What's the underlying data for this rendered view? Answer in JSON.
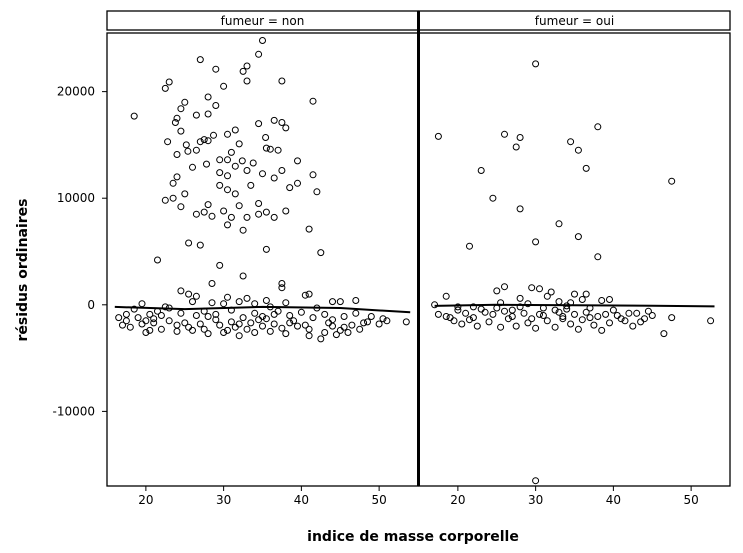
{
  "chart_data": {
    "type": "scatter",
    "xlabel": "indice de masse corporelle",
    "ylabel": "résidus ordinaires",
    "xlim": [
      15,
      55
    ],
    "ylim": [
      -17000,
      25500
    ],
    "x_ticks": [
      20,
      30,
      40,
      50
    ],
    "y_ticks": [
      -10000,
      0,
      10000,
      20000
    ],
    "y_tick_labels": [
      "-10000",
      "0",
      "10000",
      "20000"
    ],
    "grid": false,
    "panels": [
      {
        "strip": "fumeur = non",
        "smooth": [
          [
            16,
            -200
          ],
          [
            25,
            -400
          ],
          [
            35,
            -200
          ],
          [
            45,
            -300
          ],
          [
            54,
            -700
          ]
        ],
        "points": [
          [
            35,
            24800
          ],
          [
            27,
            23000
          ],
          [
            34.5,
            23500
          ],
          [
            33,
            22400
          ],
          [
            29,
            22100
          ],
          [
            32.5,
            21900
          ],
          [
            23,
            20900
          ],
          [
            22.5,
            20300
          ],
          [
            37.5,
            21000
          ],
          [
            33,
            21000
          ],
          [
            30,
            20500
          ],
          [
            25,
            19000
          ],
          [
            28,
            19500
          ],
          [
            24.5,
            18400
          ],
          [
            29,
            18700
          ],
          [
            41.5,
            19100
          ],
          [
            18.5,
            17700
          ],
          [
            24,
            17500
          ],
          [
            26.5,
            17800
          ],
          [
            28,
            17900
          ],
          [
            36.5,
            17300
          ],
          [
            37.5,
            17100
          ],
          [
            38,
            16600
          ],
          [
            23.8,
            17100
          ],
          [
            24.5,
            16300
          ],
          [
            31.5,
            16400
          ],
          [
            34.5,
            17000
          ],
          [
            30.5,
            16000
          ],
          [
            28.7,
            15900
          ],
          [
            27.5,
            15500
          ],
          [
            27,
            15300
          ],
          [
            28,
            15400
          ],
          [
            32,
            15100
          ],
          [
            22.8,
            15300
          ],
          [
            25.2,
            15000
          ],
          [
            35.4,
            15700
          ],
          [
            35.5,
            14700
          ],
          [
            36,
            14600
          ],
          [
            37,
            14500
          ],
          [
            25.4,
            14400
          ],
          [
            26.5,
            14500
          ],
          [
            31,
            14300
          ],
          [
            24,
            14100
          ],
          [
            29.5,
            13600
          ],
          [
            30.5,
            13600
          ],
          [
            32.4,
            13500
          ],
          [
            33.8,
            13300
          ],
          [
            39.5,
            13500
          ],
          [
            27.8,
            13200
          ],
          [
            31.5,
            13000
          ],
          [
            26,
            12900
          ],
          [
            33,
            12600
          ],
          [
            35,
            12300
          ],
          [
            29.5,
            12400
          ],
          [
            37.5,
            12600
          ],
          [
            41.5,
            12200
          ],
          [
            24,
            12000
          ],
          [
            30.5,
            12100
          ],
          [
            39.5,
            11400
          ],
          [
            38.5,
            11000
          ],
          [
            23.5,
            11400
          ],
          [
            29.5,
            11200
          ],
          [
            33.5,
            11200
          ],
          [
            36.5,
            11900
          ],
          [
            30.5,
            10800
          ],
          [
            25,
            10400
          ],
          [
            31.5,
            10400
          ],
          [
            42,
            10600
          ],
          [
            22.5,
            9800
          ],
          [
            23.5,
            10000
          ],
          [
            28,
            9400
          ],
          [
            32,
            9300
          ],
          [
            34.5,
            9500
          ],
          [
            24.5,
            9200
          ],
          [
            26.5,
            8500
          ],
          [
            27.5,
            8700
          ],
          [
            30,
            8800
          ],
          [
            33,
            8200
          ],
          [
            34.5,
            8500
          ],
          [
            35.5,
            8700
          ],
          [
            36.5,
            8200
          ],
          [
            38,
            8800
          ],
          [
            41,
            7100
          ],
          [
            30.5,
            7500
          ],
          [
            31,
            8200
          ],
          [
            28.5,
            8300
          ],
          [
            32.5,
            7000
          ],
          [
            25.5,
            5800
          ],
          [
            27,
            5600
          ],
          [
            35.5,
            5200
          ],
          [
            42.5,
            4900
          ],
          [
            21.5,
            4200
          ],
          [
            29.5,
            3700
          ],
          [
            32.5,
            2700
          ],
          [
            28.5,
            2000
          ],
          [
            37.5,
            2000
          ],
          [
            37.5,
            1600
          ],
          [
            24.5,
            1300
          ],
          [
            25.5,
            1000
          ],
          [
            26.5,
            800
          ],
          [
            40.5,
            900
          ],
          [
            41,
            1000
          ],
          [
            30.5,
            700
          ],
          [
            33,
            600
          ],
          [
            35.5,
            400
          ],
          [
            44,
            300
          ],
          [
            45,
            300
          ],
          [
            47,
            400
          ],
          [
            49,
            -1100
          ],
          [
            50.5,
            -1300
          ],
          [
            51,
            -1500
          ],
          [
            53.5,
            -1600
          ],
          [
            16.5,
            -1200
          ],
          [
            17,
            -1900
          ],
          [
            17.5,
            -1500
          ],
          [
            18,
            -2100
          ],
          [
            19.5,
            -1800
          ],
          [
            20.5,
            -2400
          ],
          [
            21,
            -1700
          ],
          [
            45.5,
            -2100
          ],
          [
            46.5,
            -1900
          ],
          [
            47.5,
            -2300
          ],
          [
            48,
            -1700
          ],
          [
            43,
            -2600
          ],
          [
            44.5,
            -2800
          ],
          [
            42.5,
            -3200
          ],
          [
            41,
            -2900
          ],
          [
            38,
            -2700
          ],
          [
            36,
            -2500
          ],
          [
            34,
            -2600
          ],
          [
            32,
            -2900
          ],
          [
            30,
            -2600
          ],
          [
            28,
            -2700
          ],
          [
            26,
            -2400
          ],
          [
            24,
            -2500
          ],
          [
            22,
            -2300
          ],
          [
            20,
            -2600
          ],
          [
            19,
            -1200
          ],
          [
            21.5,
            -600
          ],
          [
            23,
            -300
          ],
          [
            24.5,
            -800
          ],
          [
            26.5,
            -1000
          ],
          [
            27.5,
            -600
          ],
          [
            29,
            -900
          ],
          [
            31,
            -500
          ],
          [
            32.5,
            -1200
          ],
          [
            34,
            -800
          ],
          [
            35.5,
            -1300
          ],
          [
            37,
            -600
          ],
          [
            38.5,
            -1000
          ],
          [
            40,
            -700
          ],
          [
            41.5,
            -1200
          ],
          [
            43,
            -900
          ],
          [
            29.5,
            -1900
          ],
          [
            31.5,
            -2100
          ],
          [
            33.5,
            -1700
          ],
          [
            35,
            -2000
          ],
          [
            36.5,
            -1800
          ],
          [
            27,
            -1800
          ],
          [
            25,
            -1700
          ],
          [
            23,
            -1500
          ],
          [
            39.5,
            -2000
          ],
          [
            44,
            -1400
          ],
          [
            45.5,
            -1100
          ],
          [
            30,
            100
          ],
          [
            28.5,
            200
          ],
          [
            32,
            300
          ],
          [
            34,
            100
          ],
          [
            36,
            -200
          ],
          [
            22.5,
            -200
          ],
          [
            20.5,
            -900
          ],
          [
            18.5,
            -400
          ],
          [
            26,
            300
          ],
          [
            38,
            200
          ],
          [
            42,
            -300
          ],
          [
            47,
            -800
          ],
          [
            48.5,
            -1600
          ],
          [
            19.5,
            100
          ],
          [
            21,
            -1300
          ],
          [
            25.5,
            -2100
          ],
          [
            27.5,
            -2300
          ],
          [
            29,
            -1400
          ],
          [
            31,
            -1600
          ],
          [
            33,
            -2300
          ],
          [
            35,
            -1100
          ],
          [
            37.5,
            -2200
          ],
          [
            39,
            -1500
          ],
          [
            40.5,
            -1900
          ],
          [
            43.5,
            -1700
          ],
          [
            45,
            -2400
          ],
          [
            46,
            -2600
          ],
          [
            17.5,
            -900
          ],
          [
            20,
            -1500
          ],
          [
            22,
            -1000
          ],
          [
            24,
            -1900
          ],
          [
            28,
            -1100
          ],
          [
            30.5,
            -2400
          ],
          [
            32,
            -1800
          ],
          [
            34.5,
            -1400
          ],
          [
            36.5,
            -900
          ],
          [
            38.5,
            -1700
          ],
          [
            41,
            -2300
          ],
          [
            44,
            -2000
          ],
          [
            50,
            -1800
          ]
        ]
      },
      {
        "strip": "fumeur = oui",
        "smooth": [
          [
            17,
            -100
          ],
          [
            25,
            0
          ],
          [
            35,
            -50
          ],
          [
            45,
            -80
          ],
          [
            53,
            -150
          ]
        ],
        "points": [
          [
            30,
            22600
          ],
          [
            26,
            16000
          ],
          [
            28,
            15700
          ],
          [
            17.5,
            15800
          ],
          [
            34.5,
            15300
          ],
          [
            38,
            16700
          ],
          [
            35.5,
            14500
          ],
          [
            27.5,
            14800
          ],
          [
            23,
            12600
          ],
          [
            36.5,
            12800
          ],
          [
            47.5,
            11600
          ],
          [
            24.5,
            10000
          ],
          [
            28,
            9000
          ],
          [
            33,
            7600
          ],
          [
            35.5,
            6400
          ],
          [
            30,
            5900
          ],
          [
            21.5,
            5500
          ],
          [
            38,
            4500
          ],
          [
            30.5,
            1500
          ],
          [
            32,
            1200
          ],
          [
            26,
            1700
          ],
          [
            25,
            1300
          ],
          [
            29.5,
            1600
          ],
          [
            35,
            1000
          ],
          [
            36.5,
            1000
          ],
          [
            38.5,
            400
          ],
          [
            39.5,
            500
          ],
          [
            18.5,
            800
          ],
          [
            17,
            0
          ],
          [
            20,
            -500
          ],
          [
            22,
            -200
          ],
          [
            23.5,
            -700
          ],
          [
            25,
            -300
          ],
          [
            27,
            -500
          ],
          [
            28.5,
            -800
          ],
          [
            31,
            -300
          ],
          [
            33,
            -700
          ],
          [
            34,
            -400
          ],
          [
            37,
            -300
          ],
          [
            40,
            -500
          ],
          [
            42,
            -800
          ],
          [
            45,
            -1000
          ],
          [
            46.5,
            -2700
          ],
          [
            44,
            -1300
          ],
          [
            47.5,
            -1200
          ],
          [
            52.5,
            -1500
          ],
          [
            17.5,
            -900
          ],
          [
            18.5,
            -1100
          ],
          [
            19.5,
            -1500
          ],
          [
            20.5,
            -1800
          ],
          [
            21.5,
            -1400
          ],
          [
            22.5,
            -2000
          ],
          [
            24,
            -1600
          ],
          [
            25.5,
            -2100
          ],
          [
            26.5,
            -1300
          ],
          [
            27.5,
            -2000
          ],
          [
            29,
            -1700
          ],
          [
            30,
            -2200
          ],
          [
            31.5,
            -1500
          ],
          [
            32.5,
            -2100
          ],
          [
            33.5,
            -1300
          ],
          [
            34.5,
            -1800
          ],
          [
            35.5,
            -2300
          ],
          [
            36,
            -1400
          ],
          [
            37.5,
            -1900
          ],
          [
            38.5,
            -2400
          ],
          [
            39.5,
            -1700
          ],
          [
            41,
            -1300
          ],
          [
            42.5,
            -2000
          ],
          [
            43.5,
            -1600
          ],
          [
            30,
            -16500
          ],
          [
            21,
            -800
          ],
          [
            23,
            -400
          ],
          [
            26,
            -600
          ],
          [
            28,
            -200
          ],
          [
            30.5,
            -900
          ],
          [
            32.5,
            -500
          ],
          [
            34.5,
            200
          ],
          [
            36.5,
            -700
          ],
          [
            38,
            -1100
          ],
          [
            40.5,
            -1000
          ],
          [
            22,
            -1200
          ],
          [
            24.5,
            -900
          ],
          [
            27,
            -1100
          ],
          [
            29.5,
            -1300
          ],
          [
            31,
            -1000
          ],
          [
            33.5,
            -1100
          ],
          [
            35,
            -900
          ],
          [
            37,
            -1200
          ],
          [
            39,
            -900
          ],
          [
            41.5,
            -1500
          ],
          [
            43,
            -800
          ],
          [
            28,
            600
          ],
          [
            31.5,
            800
          ],
          [
            33,
            300
          ],
          [
            25.5,
            200
          ],
          [
            20,
            -200
          ],
          [
            44.5,
            -600
          ],
          [
            19,
            -1200
          ],
          [
            36,
            500
          ],
          [
            29,
            100
          ],
          [
            34,
            -100
          ]
        ]
      }
    ]
  }
}
